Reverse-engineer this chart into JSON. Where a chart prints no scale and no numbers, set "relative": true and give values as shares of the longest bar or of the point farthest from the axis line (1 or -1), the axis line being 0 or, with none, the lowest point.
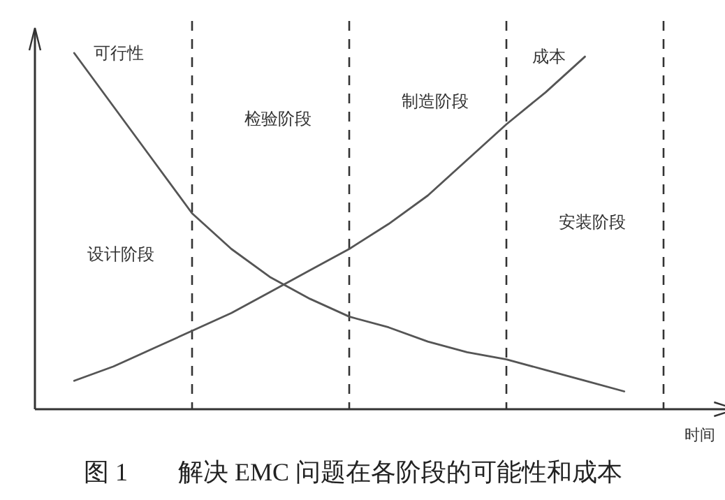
{
  "chart_data": {
    "type": "line",
    "relative": true,
    "title": "图 1　　解决 EMC 问题在各阶段的可能性和成本",
    "xlabel": "时间",
    "marker": "none",
    "grid": "x",
    "line_style": "solid",
    "categories": [
      null,
      null,
      null,
      null,
      null,
      null,
      null,
      null,
      null,
      null,
      null,
      null,
      null,
      null,
      null,
      null
    ],
    "series": [
      {
        "name": "可行性",
        "color": "#555555",
        "values": [
          1,
          0.85,
          0.7,
          0.55,
          0.45,
          0.37,
          0.31,
          0.26,
          0.23,
          0.19,
          0.16,
          0.14,
          0.11,
          0.08,
          0.05,
          null
        ]
      },
      {
        "name": "成本",
        "color": "#555555",
        "values": [
          0.08,
          0.12,
          0.17,
          0.22,
          0.27,
          0.33,
          0.39,
          0.45,
          0.52,
          0.6,
          0.7,
          0.8,
          0.89,
          0.99,
          null,
          null
        ]
      }
    ],
    "annotations": [
      "设计阶段",
      "检验阶段",
      "制造阶段",
      "安装阶段"
    ]
  }
}
